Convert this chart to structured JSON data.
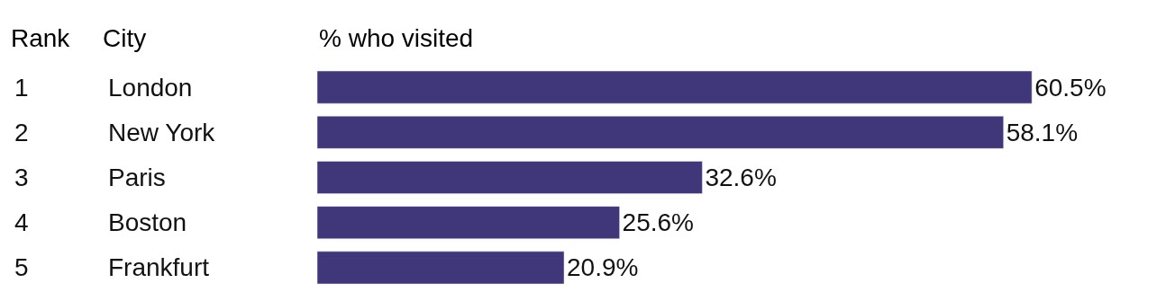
{
  "chart_data": {
    "type": "bar",
    "orientation": "horizontal",
    "xlabel": "% who visited",
    "categories": [
      "London",
      "New York",
      "Paris",
      "Boston",
      "Frankfurt"
    ],
    "values": [
      60.5,
      58.1,
      32.6,
      25.6,
      20.9
    ],
    "value_labels": [
      "60.5%",
      "58.1%",
      "32.6%",
      "25.6%",
      "20.9%"
    ],
    "color": "#40367a",
    "annotations": [
      "Rank",
      "City",
      "1",
      "2",
      "3",
      "4",
      "5"
    ]
  }
}
